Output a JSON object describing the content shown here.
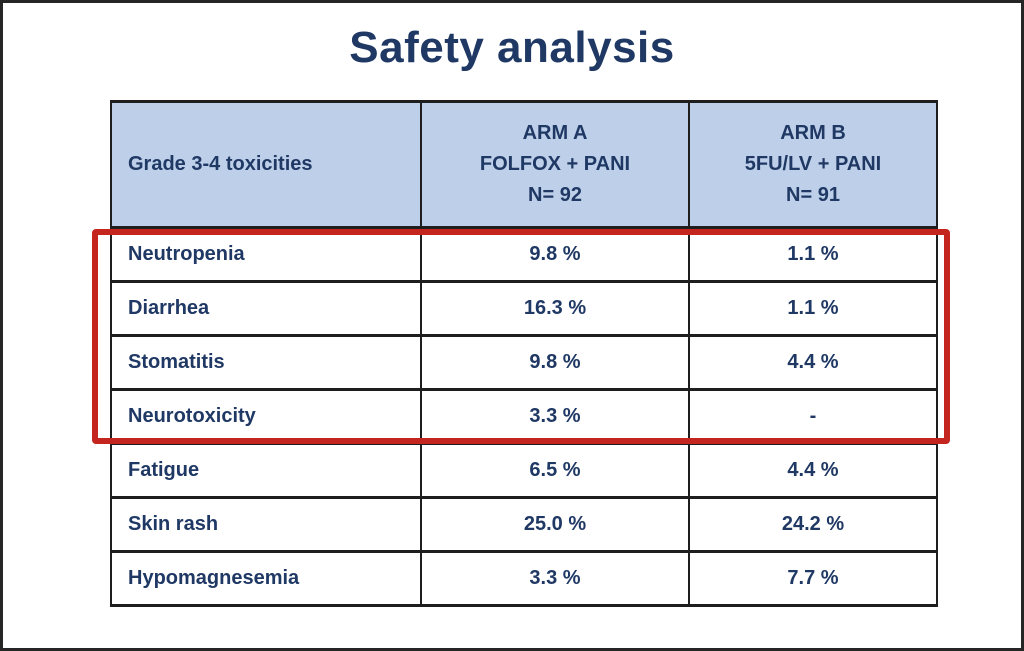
{
  "title": "Safety analysis",
  "table": {
    "header": {
      "toxicities_label": "Grade 3-4 toxicities",
      "arm_a": {
        "line1": "ARM A",
        "line2": "FOLFOX + PANI",
        "line3": "N= 92"
      },
      "arm_b": {
        "line1": "ARM B",
        "line2": "5FU/LV + PANI",
        "line3": "N= 91"
      }
    },
    "rows": [
      {
        "name": "Neutropenia",
        "arm_a": "9.8 %",
        "arm_b": "1.1 %",
        "highlighted": true
      },
      {
        "name": "Diarrhea",
        "arm_a": "16.3 %",
        "arm_b": "1.1 %",
        "highlighted": true
      },
      {
        "name": "Stomatitis",
        "arm_a": "9.8 %",
        "arm_b": "4.4 %",
        "highlighted": true
      },
      {
        "name": "Neurotoxicity",
        "arm_a": "3.3 %",
        "arm_b": "-",
        "highlighted": true
      },
      {
        "name": "Fatigue",
        "arm_a": "6.5 %",
        "arm_b": "4.4 %",
        "highlighted": false
      },
      {
        "name": "Skin rash",
        "arm_a": "25.0 %",
        "arm_b": "24.2 %",
        "highlighted": false
      },
      {
        "name": "Hypomagnesemia",
        "arm_a": "3.3 %",
        "arm_b": "7.7 %",
        "highlighted": false
      }
    ]
  },
  "colors": {
    "text_navy": "#1f3864",
    "header_bg": "#bed0e9",
    "table_border": "#1e1e1e",
    "highlight_red": "#c4251f",
    "frame_black": "#262626"
  }
}
